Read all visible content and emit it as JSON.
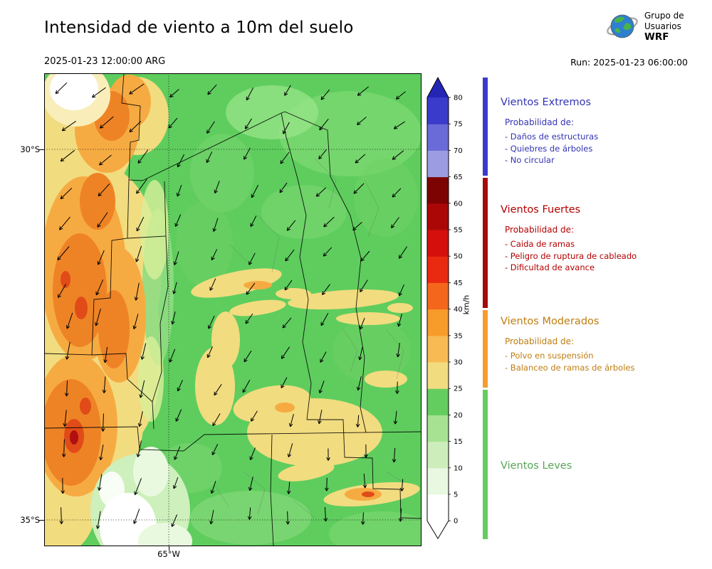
{
  "header": {
    "title": "Intensidad de viento a 10m del suelo",
    "valid_datetime": "2025-01-23 12:00:00 ARG",
    "run_label": "Run: 2025-01-23 06:00:00",
    "logo": {
      "line1": "Grupo de",
      "line2": "Usuarios",
      "line3": "WRF"
    }
  },
  "map": {
    "lat_labels": [
      "30°S",
      "35°S"
    ],
    "lon_label": "65°W"
  },
  "colorbar": {
    "unit": "km/h",
    "ticks": [
      0,
      5,
      10,
      15,
      20,
      25,
      30,
      35,
      40,
      45,
      50,
      55,
      60,
      65,
      70,
      75,
      80
    ],
    "colors_bottom_to_top": [
      "#ffffff",
      "#e9f8e0",
      "#cdeebb",
      "#a6e292",
      "#64cd5f",
      "#f2dc80",
      "#f6bb52",
      "#f79b2a",
      "#f4661c",
      "#ea2a10",
      "#d40f0c",
      "#ab0707",
      "#7d0303",
      "#9c9ce2",
      "#6a6ad8",
      "#3a3acb"
    ],
    "over_color": "#2525b5",
    "under_color": "#ffffff"
  },
  "legend": {
    "sections": [
      {
        "title": "Vientos Extremos",
        "text_color": "#3333b4",
        "strip_color": "#3a3acb",
        "range": {
          "from": 65,
          "to": null
        },
        "prob_label": "Probabilidad de:",
        "items": [
          "- Daños de estructuras",
          "- Quiebres de árboles",
          "- No circular"
        ]
      },
      {
        "title": "Vientos Fuertes",
        "text_color": "#b30000",
        "strip_color": "#a50b06",
        "range": {
          "from": 40,
          "to": 65
        },
        "prob_label": "Probabilidad de:",
        "items": [
          "- Caida de ramas",
          "- Peligro de ruptura de cableado",
          "- Dificultad de avance"
        ]
      },
      {
        "title": "Vientos Moderados",
        "text_color": "#bf7d0f",
        "strip_color": "#f69d2c",
        "range": {
          "from": 25,
          "to": 40
        },
        "prob_label": "Probabilidad de:",
        "items": [
          "- Polvo en suspensión",
          "- Balanceo de ramas de árboles"
        ]
      },
      {
        "title": "Vientos Leves",
        "text_color": "#56a656",
        "strip_color": "#64cd5f",
        "range": {
          "from": null,
          "to": 25
        },
        "prob_label": "",
        "items": []
      }
    ]
  }
}
